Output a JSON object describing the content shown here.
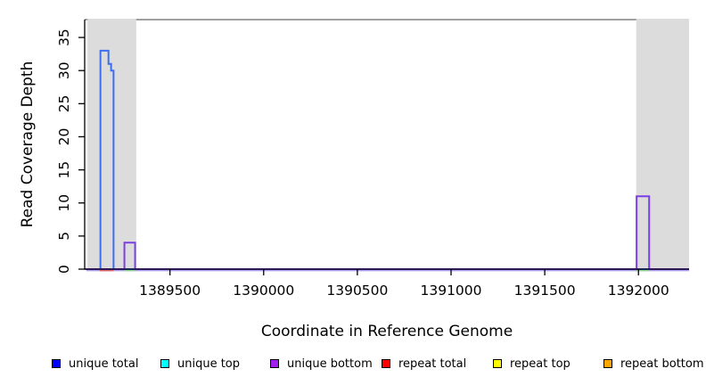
{
  "chart_data": {
    "type": "line",
    "subtype": "step-coverage",
    "title": "",
    "xlabel": "Coordinate in Reference Genome",
    "ylabel": "Read Coverage Depth",
    "xlim": [
      1389045,
      1392270
    ],
    "ylim": [
      0,
      37.7
    ],
    "xticks": [
      1389500,
      1390000,
      1390500,
      1391000,
      1391500,
      1392000
    ],
    "yticks": [
      0,
      5,
      10,
      15,
      20,
      25,
      30,
      35
    ],
    "grid": false,
    "frame_color": "#808080",
    "axis_color": "#000000",
    "shaded_regions": [
      {
        "name": "repeat-region-left",
        "x1": 1389060,
        "x2": 1389320,
        "color": "#dcdcdc"
      },
      {
        "name": "repeat-region-right",
        "x1": 1391988,
        "x2": 1392270,
        "color": "#dcdcdc"
      }
    ],
    "series": [
      {
        "name": "unique total",
        "color": "#3d6ef0",
        "steps": [
          [
            1389045,
            0
          ],
          [
            1389129,
            33
          ],
          [
            1389172,
            31
          ],
          [
            1389186,
            30
          ],
          [
            1389199,
            0
          ],
          [
            1392270,
            0
          ]
        ]
      },
      {
        "name": "unique bottom",
        "color": "#7b3fe4",
        "steps": [
          [
            1389045,
            0
          ],
          [
            1389257,
            4
          ],
          [
            1389314,
            0
          ],
          [
            1391990,
            11
          ],
          [
            1392057,
            0
          ],
          [
            1392270,
            0
          ]
        ]
      }
    ],
    "baseline": {
      "color": "#aca4f0",
      "segments": [
        {
          "name": "baseline-red-segment",
          "x1": 1389125,
          "x2": 1389199,
          "color": "#e06666"
        },
        {
          "name": "baseline-green-segment-left",
          "x1": 1389257,
          "x2": 1389314,
          "color": "#8fd98f"
        },
        {
          "name": "baseline-green-segment-right",
          "x1": 1391990,
          "x2": 1392057,
          "color": "#8fd98f"
        }
      ]
    }
  },
  "legend": {
    "items": [
      {
        "label": "unique total",
        "color": "#0000ff"
      },
      {
        "label": "unique top",
        "color": "#00ffff"
      },
      {
        "label": "unique bottom",
        "color": "#a020f0"
      },
      {
        "label": "repeat total",
        "color": "#ff0000"
      },
      {
        "label": "repeat top",
        "color": "#ffff00"
      },
      {
        "label": "repeat bottom",
        "color": "#ffa500"
      }
    ]
  }
}
